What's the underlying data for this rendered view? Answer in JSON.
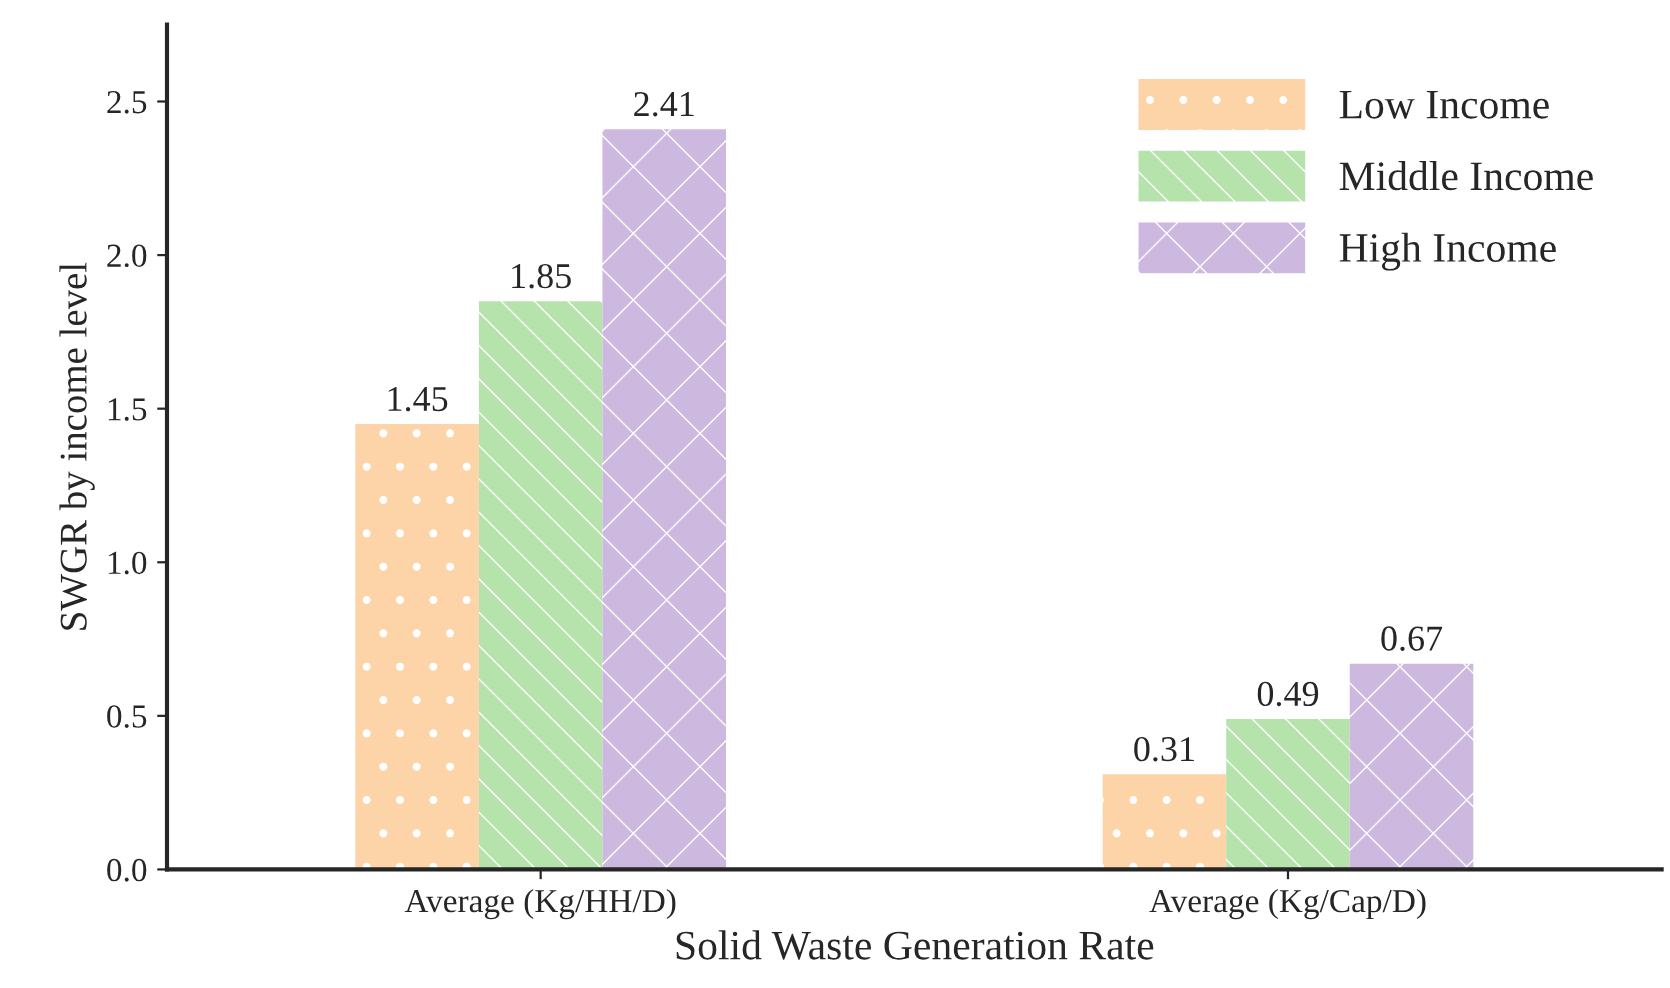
{
  "chart_data": {
    "type": "bar",
    "xlabel": "Solid Waste Generation Rate",
    "ylabel": "SWGR by income level",
    "categories": [
      "Average (Kg/HH/D)",
      "Average (Kg/Cap/D)"
    ],
    "series": [
      {
        "name": "Low Income",
        "color": "#fdd3a8",
        "values": [
          1.45,
          0.31
        ]
      },
      {
        "name": "Middle Income",
        "color": "#b5e3ab",
        "values": [
          1.85,
          0.49
        ]
      },
      {
        "name": "High Income",
        "color": "#cdb8e0",
        "values": [
          2.41,
          0.67
        ]
      }
    ],
    "ylim": [
      0,
      2.75
    ],
    "yticks": [
      {
        "value": 0,
        "label": "0.0"
      },
      {
        "value": 0.5,
        "label": "0.5"
      },
      {
        "value": 1.0,
        "label": "1.0"
      },
      {
        "value": 1.5,
        "label": "1.5"
      },
      {
        "value": 2.0,
        "label": "2.0"
      },
      {
        "value": 2.5,
        "label": "2.5"
      }
    ],
    "data_labels": true,
    "legend": "top right",
    "grid": false
  }
}
